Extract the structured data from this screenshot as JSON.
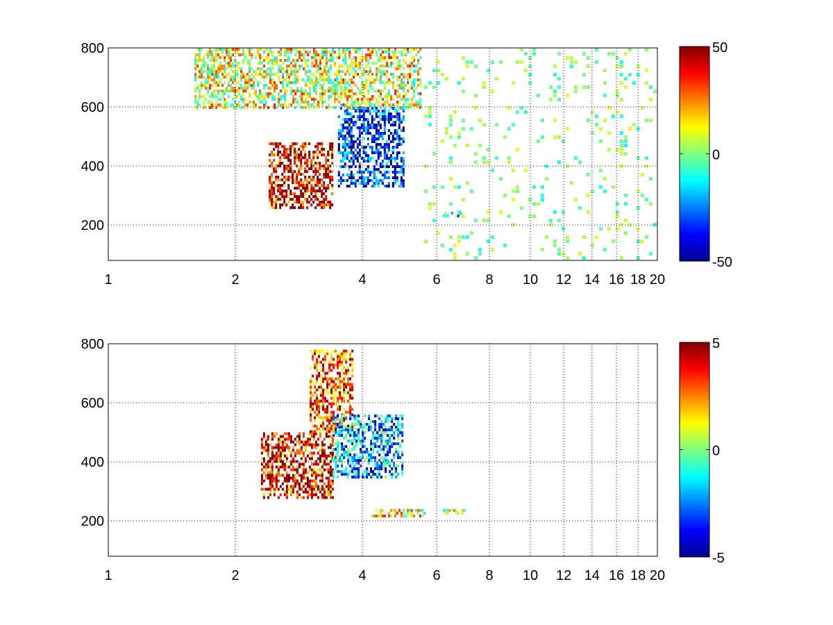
{
  "chart_data": [
    {
      "type": "heatmap",
      "title": "",
      "xlabel": "",
      "ylabel": "",
      "xlim": [
        1,
        20
      ],
      "ylim": [
        80,
        800
      ],
      "x_scale": "log",
      "x_ticks": [
        1,
        2,
        4,
        6,
        8,
        10,
        12,
        14,
        16,
        18,
        20
      ],
      "y_ticks": [
        200,
        400,
        600,
        800
      ],
      "grid": true,
      "colormap": "jet",
      "colorbar": {
        "min": -50,
        "max": 50,
        "ticks": [
          50,
          0,
          -50
        ]
      },
      "missing_color": "#ffffff",
      "features": [
        {
          "x": [
            2.4,
            3.4
          ],
          "y": [
            260,
            480
          ],
          "value": 40
        },
        {
          "x": [
            3.5,
            5.0
          ],
          "y": [
            330,
            600
          ],
          "value": -35
        },
        {
          "x": [
            1.6,
            5.5
          ],
          "y": [
            600,
            800
          ],
          "value": 10
        },
        {
          "x": [
            6.2,
            7.0
          ],
          "y": [
            230,
            245
          ],
          "value": -15
        }
      ],
      "scatter_noise": {
        "x": [
          5.6,
          20
        ],
        "y": [
          80,
          800
        ],
        "value_range": [
          -10,
          10
        ]
      }
    },
    {
      "type": "heatmap",
      "title": "",
      "xlabel": "",
      "ylabel": "",
      "xlim": [
        1,
        20
      ],
      "ylim": [
        80,
        800
      ],
      "x_scale": "log",
      "x_ticks": [
        1,
        2,
        4,
        6,
        8,
        10,
        12,
        14,
        16,
        18,
        20
      ],
      "y_ticks": [
        200,
        400,
        600,
        800
      ],
      "grid": true,
      "colormap": "jet",
      "colorbar": {
        "min": -5,
        "max": 5,
        "ticks": [
          5,
          0,
          -5
        ]
      },
      "missing_color": "#ffffff",
      "features": [
        {
          "x": [
            2.3,
            3.4
          ],
          "y": [
            280,
            500
          ],
          "value": 4
        },
        {
          "x": [
            3.0,
            3.8
          ],
          "y": [
            500,
            780
          ],
          "value": 3
        },
        {
          "x": [
            3.4,
            5.0
          ],
          "y": [
            350,
            560
          ],
          "value": -2
        },
        {
          "x": [
            4.2,
            5.6
          ],
          "y": [
            220,
            240
          ],
          "value": 1
        },
        {
          "x": [
            6.2,
            7.0
          ],
          "y": [
            225,
            240
          ],
          "value": 1
        }
      ],
      "scatter_noise": null
    }
  ]
}
